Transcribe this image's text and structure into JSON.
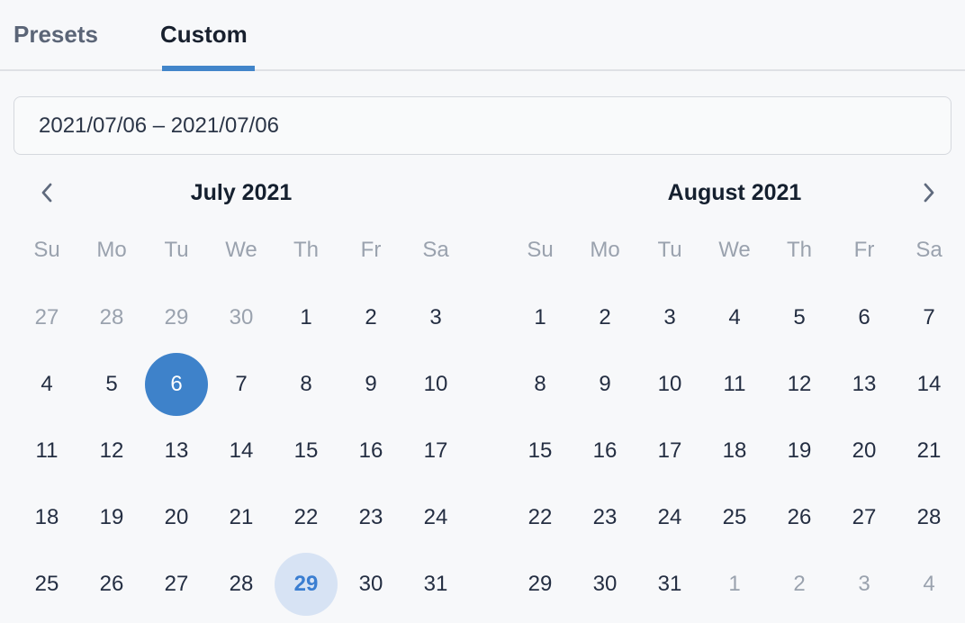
{
  "tabs": {
    "presets_label": "Presets",
    "custom_label": "Custom",
    "active": "Custom"
  },
  "range_input": {
    "value": "2021/07/06  –  2021/07/06",
    "start": "2021/07/06",
    "end": "2021/07/06",
    "separator": "–"
  },
  "nav": {
    "prev_icon": "chevron-left",
    "next_icon": "chevron-right"
  },
  "calendars": [
    {
      "title": "July 2021",
      "day_names": [
        "Su",
        "Mo",
        "Tu",
        "We",
        "Th",
        "Fr",
        "Sa"
      ],
      "weeks": [
        [
          {
            "day": "27",
            "state": "outside"
          },
          {
            "day": "28",
            "state": "outside"
          },
          {
            "day": "29",
            "state": "outside"
          },
          {
            "day": "30",
            "state": "outside"
          },
          {
            "day": "1",
            "state": "default"
          },
          {
            "day": "2",
            "state": "default"
          },
          {
            "day": "3",
            "state": "default"
          }
        ],
        [
          {
            "day": "4",
            "state": "default"
          },
          {
            "day": "5",
            "state": "default"
          },
          {
            "day": "6",
            "state": "selected"
          },
          {
            "day": "7",
            "state": "default"
          },
          {
            "day": "8",
            "state": "default"
          },
          {
            "day": "9",
            "state": "default"
          },
          {
            "day": "10",
            "state": "default"
          }
        ],
        [
          {
            "day": "11",
            "state": "default"
          },
          {
            "day": "12",
            "state": "default"
          },
          {
            "day": "13",
            "state": "default"
          },
          {
            "day": "14",
            "state": "default"
          },
          {
            "day": "15",
            "state": "default"
          },
          {
            "day": "16",
            "state": "default"
          },
          {
            "day": "17",
            "state": "default"
          }
        ],
        [
          {
            "day": "18",
            "state": "default"
          },
          {
            "day": "19",
            "state": "default"
          },
          {
            "day": "20",
            "state": "default"
          },
          {
            "day": "21",
            "state": "default"
          },
          {
            "day": "22",
            "state": "default"
          },
          {
            "day": "23",
            "state": "default"
          },
          {
            "day": "24",
            "state": "default"
          }
        ],
        [
          {
            "day": "25",
            "state": "default"
          },
          {
            "day": "26",
            "state": "default"
          },
          {
            "day": "27",
            "state": "default"
          },
          {
            "day": "28",
            "state": "default"
          },
          {
            "day": "29",
            "state": "today"
          },
          {
            "day": "30",
            "state": "default"
          },
          {
            "day": "31",
            "state": "default"
          }
        ]
      ]
    },
    {
      "title": "August 2021",
      "day_names": [
        "Su",
        "Mo",
        "Tu",
        "We",
        "Th",
        "Fr",
        "Sa"
      ],
      "weeks": [
        [
          {
            "day": "1",
            "state": "default"
          },
          {
            "day": "2",
            "state": "default"
          },
          {
            "day": "3",
            "state": "default"
          },
          {
            "day": "4",
            "state": "default"
          },
          {
            "day": "5",
            "state": "default"
          },
          {
            "day": "6",
            "state": "default"
          },
          {
            "day": "7",
            "state": "default"
          }
        ],
        [
          {
            "day": "8",
            "state": "default"
          },
          {
            "day": "9",
            "state": "default"
          },
          {
            "day": "10",
            "state": "default"
          },
          {
            "day": "11",
            "state": "default"
          },
          {
            "day": "12",
            "state": "default"
          },
          {
            "day": "13",
            "state": "default"
          },
          {
            "day": "14",
            "state": "default"
          }
        ],
        [
          {
            "day": "15",
            "state": "default"
          },
          {
            "day": "16",
            "state": "default"
          },
          {
            "day": "17",
            "state": "default"
          },
          {
            "day": "18",
            "state": "default"
          },
          {
            "day": "19",
            "state": "default"
          },
          {
            "day": "20",
            "state": "default"
          },
          {
            "day": "21",
            "state": "default"
          }
        ],
        [
          {
            "day": "22",
            "state": "default"
          },
          {
            "day": "23",
            "state": "default"
          },
          {
            "day": "24",
            "state": "default"
          },
          {
            "day": "25",
            "state": "default"
          },
          {
            "day": "26",
            "state": "default"
          },
          {
            "day": "27",
            "state": "default"
          },
          {
            "day": "28",
            "state": "default"
          }
        ],
        [
          {
            "day": "29",
            "state": "default"
          },
          {
            "day": "30",
            "state": "default"
          },
          {
            "day": "31",
            "state": "default"
          },
          {
            "day": "1",
            "state": "outside"
          },
          {
            "day": "2",
            "state": "outside"
          },
          {
            "day": "3",
            "state": "outside"
          },
          {
            "day": "4",
            "state": "outside"
          }
        ]
      ]
    }
  ],
  "colors": {
    "background": "#f7f8fa",
    "accent_blue": "#3e82ca",
    "tab_indicator": "#4285ca",
    "today_circle_bg": "#d7e3f4",
    "today_text": "#3b7ed1",
    "muted_text": "#9aa2ae",
    "dark_text": "#18202e",
    "divider": "#dfe1e5",
    "input_border": "#d5d8de"
  }
}
